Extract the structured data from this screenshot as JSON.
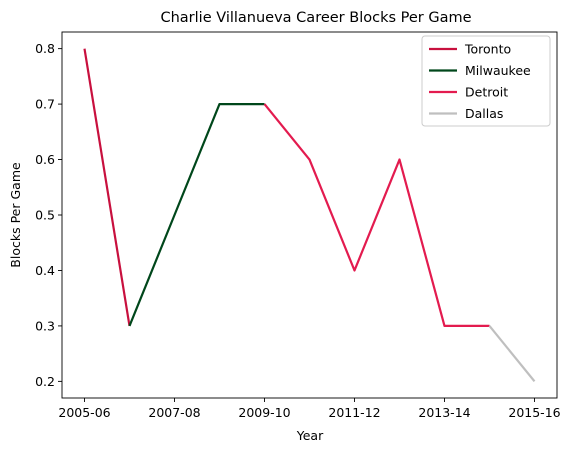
{
  "chart_data": {
    "type": "line",
    "title": "Charlie Villanueva Career Blocks Per Game",
    "xlabel": "Year",
    "ylabel": "Blocks Per Game",
    "categories": [
      "2005-06",
      "2006-07",
      "2007-08",
      "2008-09",
      "2009-10",
      "2010-11",
      "2011-12",
      "2012-13",
      "2013-14",
      "2014-15",
      "2015-16"
    ],
    "x_tick_labels": [
      "2005-06",
      "2007-08",
      "2009-10",
      "2011-12",
      "2013-14",
      "2015-16"
    ],
    "y_ticks": [
      0.2,
      0.3,
      0.4,
      0.5,
      0.6,
      0.7,
      0.8
    ],
    "ylim": [
      0.17,
      0.83
    ],
    "grid": false,
    "legend_position": "top-right",
    "series": [
      {
        "name": "Toronto",
        "color": "#c8103e",
        "points": [
          [
            "2005-06",
            0.8
          ],
          [
            "2006-07",
            0.3
          ]
        ]
      },
      {
        "name": "Milwaukee",
        "color": "#00471b",
        "points": [
          [
            "2006-07",
            0.3
          ],
          [
            "2007-08",
            0.5
          ],
          [
            "2008-09",
            0.7
          ],
          [
            "2009-10",
            0.7
          ]
        ]
      },
      {
        "name": "Detroit",
        "color": "#e31b4f",
        "points": [
          [
            "2009-10",
            0.7
          ],
          [
            "2010-11",
            0.6
          ],
          [
            "2011-12",
            0.4
          ],
          [
            "2012-13",
            0.6
          ],
          [
            "2013-14",
            0.3
          ],
          [
            "2014-15",
            0.3
          ]
        ]
      },
      {
        "name": "Dallas",
        "color": "#bfbfbf",
        "points": [
          [
            "2014-15",
            0.3
          ],
          [
            "2015-16",
            0.2
          ]
        ]
      }
    ]
  }
}
